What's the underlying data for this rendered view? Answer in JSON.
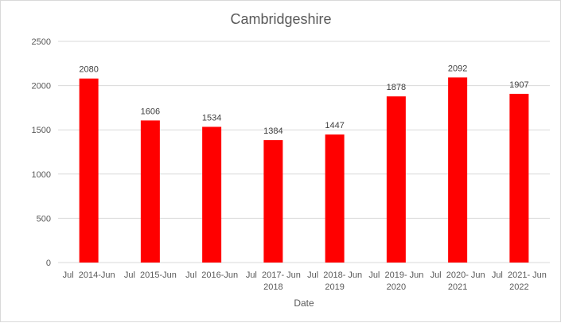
{
  "chart_data": {
    "type": "bar",
    "title": "Cambridgeshire",
    "xlabel": "Date",
    "ylabel": "",
    "categories": [
      [
        "Jul  2014-Jun",
        ""
      ],
      [
        "Jul  2015-Jun",
        ""
      ],
      [
        "Jul  2016-Jun",
        ""
      ],
      [
        "Jul  2017- Jun",
        "2018"
      ],
      [
        "Jul  2018- Jun",
        "2019"
      ],
      [
        "Jul  2019- Jun",
        "2020"
      ],
      [
        "Jul  2020- Jun",
        "2021"
      ],
      [
        "Jul  2021- Jun",
        "2022"
      ]
    ],
    "values": [
      2080,
      1606,
      1534,
      1384,
      1447,
      1878,
      2092,
      1907
    ],
    "ylim": [
      0,
      2500
    ],
    "yticks": [
      0,
      500,
      1000,
      1500,
      2000,
      2500
    ],
    "grid": true,
    "legend": "none",
    "bar_color": "#ff0000",
    "gridline_color": "#d9d9d9"
  }
}
